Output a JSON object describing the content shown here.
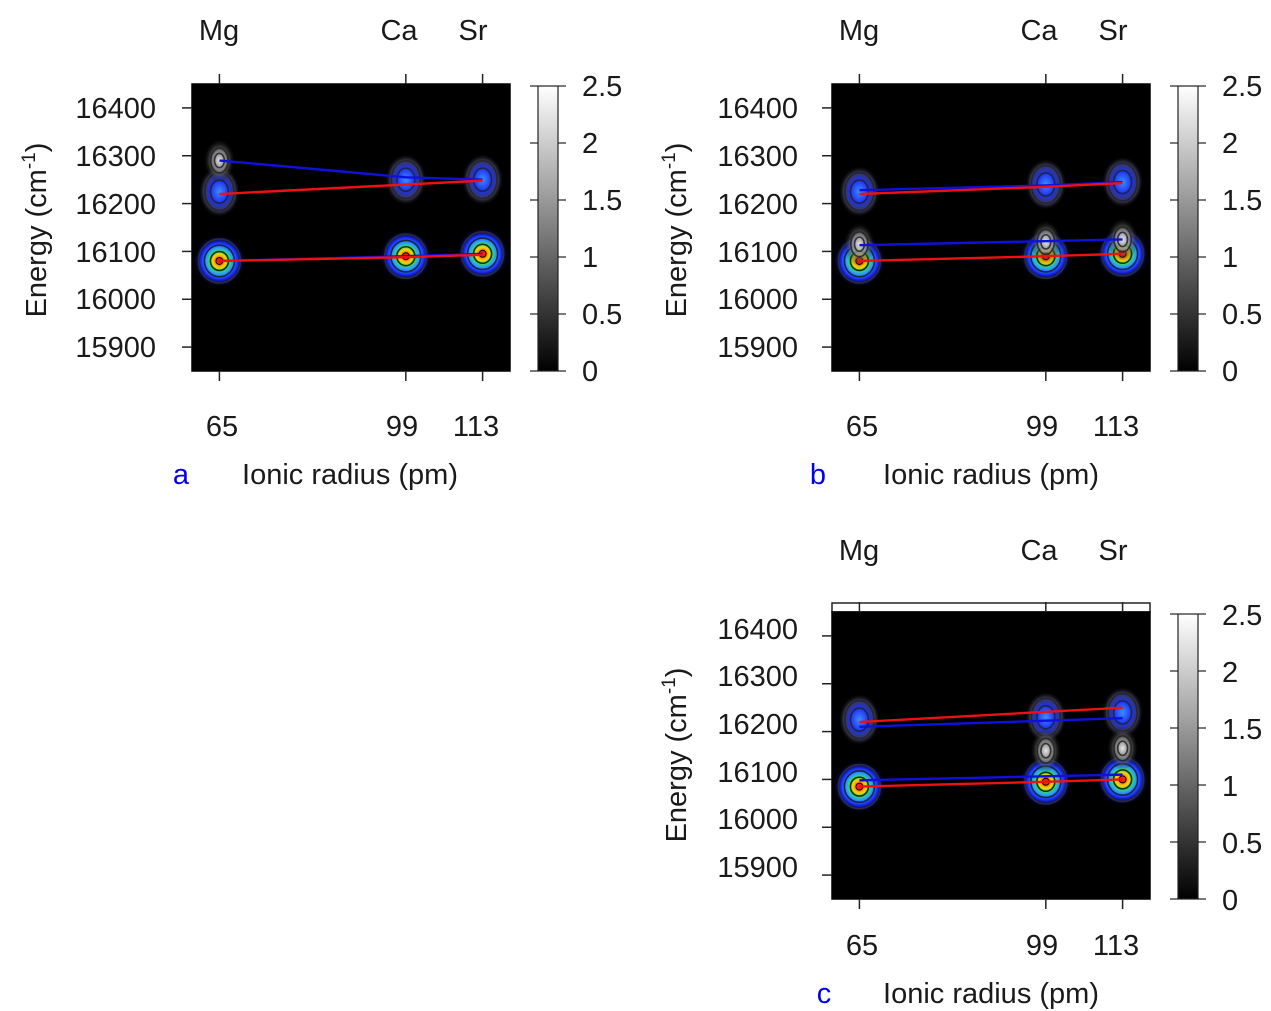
{
  "chart_data": [
    {
      "type": "heatmap",
      "panel_label": "a",
      "xlabel": "Ionic radius (pm)",
      "ylabel": "Energy (cm-1)",
      "x_ticks": [
        65,
        99,
        113
      ],
      "x_top_labels": [
        "Mg",
        "Ca",
        "Sr"
      ],
      "y_ticks": [
        15900,
        16000,
        16100,
        16200,
        16300,
        16400
      ],
      "colorbar_ticks": [
        "0",
        "0.5",
        "1",
        "1.5",
        "2",
        "2.5"
      ],
      "colorbar_range": [
        0,
        2.5
      ],
      "xlim": [
        60,
        118
      ],
      "ylim": [
        15850,
        16450
      ],
      "peaks": [
        {
          "x": 65,
          "y": 16080,
          "intensity": 2.5
        },
        {
          "x": 99,
          "y": 16090,
          "intensity": 2.5
        },
        {
          "x": 113,
          "y": 16095,
          "intensity": 2.5
        },
        {
          "x": 65,
          "y": 16225,
          "intensity": 1.2
        },
        {
          "x": 65,
          "y": 16290,
          "intensity": 0.9
        },
        {
          "x": 99,
          "y": 16250,
          "intensity": 1.1
        },
        {
          "x": 113,
          "y": 16250,
          "intensity": 1.3
        }
      ],
      "lines": [
        {
          "color": "#1010dd",
          "points": [
            [
              65,
              16080
            ],
            [
              99,
              16090
            ],
            [
              113,
              16095
            ]
          ]
        },
        {
          "color": "#ee1111",
          "points": [
            [
              65,
              16080
            ],
            [
              99,
              16088
            ],
            [
              113,
              16093
            ]
          ]
        },
        {
          "color": "#1010dd",
          "points": [
            [
              65,
              16290
            ],
            [
              99,
              16255
            ],
            [
              113,
              16250
            ]
          ]
        },
        {
          "color": "#ee1111",
          "points": [
            [
              65,
              16220
            ],
            [
              113,
              16248
            ]
          ]
        }
      ]
    },
    {
      "type": "heatmap",
      "panel_label": "b",
      "xlabel": "Ionic radius (pm)",
      "ylabel": "Energy (cm-1)",
      "x_ticks": [
        65,
        99,
        113
      ],
      "x_top_labels": [
        "Mg",
        "Ca",
        "Sr"
      ],
      "y_ticks": [
        15900,
        16000,
        16100,
        16200,
        16300,
        16400
      ],
      "colorbar_ticks": [
        "0",
        "0.5",
        "1",
        "1.5",
        "2",
        "2.5"
      ],
      "colorbar_range": [
        0,
        2.5
      ],
      "xlim": [
        60,
        118
      ],
      "ylim": [
        15850,
        16450
      ],
      "peaks": [
        {
          "x": 65,
          "y": 16080,
          "intensity": 2.5
        },
        {
          "x": 99,
          "y": 16090,
          "intensity": 2.5
        },
        {
          "x": 113,
          "y": 16095,
          "intensity": 2.5
        },
        {
          "x": 65,
          "y": 16225,
          "intensity": 1.2
        },
        {
          "x": 99,
          "y": 16240,
          "intensity": 1.2
        },
        {
          "x": 113,
          "y": 16245,
          "intensity": 1.3
        },
        {
          "x": 65,
          "y": 16115,
          "intensity": 0.6
        },
        {
          "x": 99,
          "y": 16120,
          "intensity": 0.6
        },
        {
          "x": 113,
          "y": 16125,
          "intensity": 0.6
        }
      ],
      "lines": [
        {
          "color": "#1010dd",
          "points": [
            [
              65,
              16228
            ],
            [
              99,
              16238
            ],
            [
              113,
              16245
            ]
          ]
        },
        {
          "color": "#ee1111",
          "points": [
            [
              65,
              16220
            ],
            [
              99,
              16235
            ],
            [
              113,
              16243
            ]
          ]
        },
        {
          "color": "#1010dd",
          "points": [
            [
              65,
              16113
            ],
            [
              113,
              16125
            ]
          ]
        },
        {
          "color": "#ee1111",
          "points": [
            [
              65,
              16080
            ],
            [
              99,
              16090
            ],
            [
              113,
              16095
            ]
          ]
        }
      ]
    },
    {
      "type": "heatmap",
      "panel_label": "c",
      "xlabel": "Ionic radius (pm)",
      "ylabel": "Energy (cm-1)",
      "x_ticks": [
        65,
        99,
        113
      ],
      "x_top_labels": [
        "Mg",
        "Ca",
        "Sr"
      ],
      "y_ticks": [
        15900,
        16000,
        16100,
        16200,
        16300,
        16400
      ],
      "colorbar_ticks": [
        "0",
        "0.5",
        "1",
        "1.5",
        "2",
        "2.5"
      ],
      "colorbar_range": [
        0,
        2.5
      ],
      "xlim": [
        60,
        118
      ],
      "ylim": [
        15850,
        16450
      ],
      "peaks": [
        {
          "x": 65,
          "y": 16085,
          "intensity": 2.5
        },
        {
          "x": 99,
          "y": 16095,
          "intensity": 2.5
        },
        {
          "x": 113,
          "y": 16100,
          "intensity": 2.5
        },
        {
          "x": 65,
          "y": 16225,
          "intensity": 1.2
        },
        {
          "x": 99,
          "y": 16230,
          "intensity": 1.2
        },
        {
          "x": 113,
          "y": 16240,
          "intensity": 1.3
        },
        {
          "x": 99,
          "y": 16160,
          "intensity": 0.5
        },
        {
          "x": 113,
          "y": 16165,
          "intensity": 0.5
        }
      ],
      "lines": [
        {
          "color": "#ee1111",
          "points": [
            [
              65,
              16220
            ],
            [
              113,
              16250
            ]
          ]
        },
        {
          "color": "#1010dd",
          "points": [
            [
              65,
              16210
            ],
            [
              113,
              16228
            ]
          ]
        },
        {
          "color": "#1010dd",
          "points": [
            [
              65,
              16098
            ],
            [
              113,
              16110
            ]
          ]
        },
        {
          "color": "#ee1111",
          "points": [
            [
              65,
              16085
            ],
            [
              99,
              16095
            ],
            [
              113,
              16100
            ]
          ]
        }
      ]
    }
  ]
}
